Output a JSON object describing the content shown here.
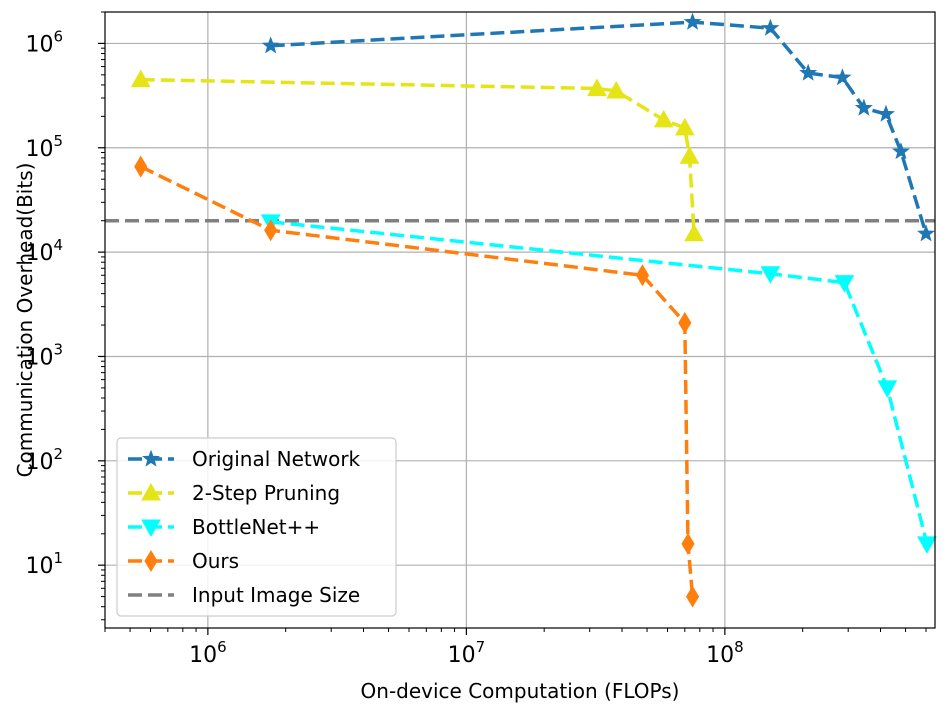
{
  "chart_data": {
    "type": "line",
    "xlabel": "On-device Computation (FLOPs)",
    "ylabel": "Communication Overhead(Bits)",
    "xscale": "log",
    "yscale": "log",
    "xlim": [
      400000,
      650000000
    ],
    "ylim": [
      2.5,
      2000000
    ],
    "grid": true,
    "legend_position": "lower-left",
    "x_ticks": [
      {
        "base": "10",
        "exp": "6"
      },
      {
        "base": "10",
        "exp": "7"
      },
      {
        "base": "10",
        "exp": "8"
      }
    ],
    "y_ticks": [
      {
        "base": "10",
        "exp": "1"
      },
      {
        "base": "10",
        "exp": "2"
      },
      {
        "base": "10",
        "exp": "3"
      },
      {
        "base": "10",
        "exp": "4"
      },
      {
        "base": "10",
        "exp": "5"
      },
      {
        "base": "10",
        "exp": "6"
      }
    ],
    "series": [
      {
        "name": "Original Network",
        "color": "#1f77b4",
        "marker": "star",
        "x": [
          1750000,
          75000000,
          150000000,
          210000000,
          285000000,
          345000000,
          420000000,
          480000000,
          600000000
        ],
        "y": [
          950000,
          1600000,
          1400000,
          520000,
          470000,
          240000,
          210000,
          92000,
          15000
        ]
      },
      {
        "name": "2-Step Pruning",
        "color": "#e4e417",
        "marker": "triangle-up",
        "x": [
          550000,
          32000000,
          38000000,
          58000000,
          70000000,
          73000000,
          76000000
        ],
        "y": [
          450000,
          370000,
          350000,
          185000,
          155000,
          83000,
          15000
        ]
      },
      {
        "name": "BottleNet++",
        "color": "#00ffff",
        "marker": "triangle-down",
        "x": [
          1750000,
          150000000,
          290000000,
          425000000,
          605000000
        ],
        "y": [
          19500,
          6200,
          5100,
          500,
          16
        ]
      },
      {
        "name": "Ours",
        "color": "#ff7f0e",
        "marker": "diamond",
        "x": [
          550000,
          1750000,
          48000000,
          70000000,
          72000000,
          75000000
        ],
        "y": [
          66000,
          16200,
          6000,
          2100,
          16,
          5
        ]
      }
    ],
    "reference_lines": [
      {
        "name": "Input Image Size",
        "color": "#808080",
        "y": 20000
      }
    ]
  }
}
